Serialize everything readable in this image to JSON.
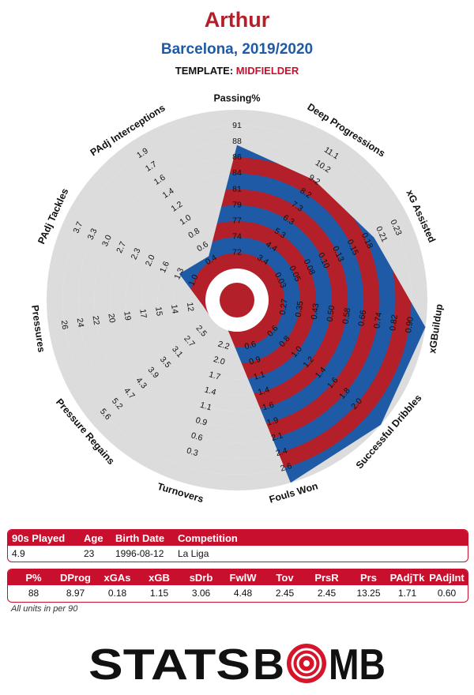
{
  "header": {
    "player": "Arthur",
    "subtitle": "Barcelona, 2019/2020",
    "template_label": "TEMPLATE:",
    "template_value": "MIDFIELDER"
  },
  "colors": {
    "red": "#b3202a",
    "blue": "#1f5aa6",
    "grey_ring": "#dcdcdc",
    "table_red": "#c8102e"
  },
  "chart_data": {
    "type": "radar",
    "title": "Arthur",
    "subtitle": "Barcelona, 2019/2020",
    "axes": [
      {
        "label": "Passing%",
        "ticks": [
          "72",
          "74",
          "77",
          "79",
          "81",
          "84",
          "86",
          "88",
          "91"
        ],
        "value": 88,
        "fraction": 0.778
      },
      {
        "label": "Deep Progressions",
        "ticks": [
          "3.4",
          "4.4",
          "5.3",
          "6.3",
          "7.3",
          "8.2",
          "9.2",
          "10.2",
          "11.1"
        ],
        "value": 8.97,
        "fraction": 0.7
      },
      {
        "label": "xG Assisted",
        "ticks": [
          "0.03",
          "0.05",
          "0.08",
          "0.10",
          "0.13",
          "0.15",
          "0.18",
          "0.21",
          "0.23"
        ],
        "value": 0.18,
        "fraction": 0.75
      },
      {
        "label": "xGBuildup",
        "ticks": [
          "0.27",
          "0.35",
          "0.43",
          "0.50",
          "0.58",
          "0.66",
          "0.74",
          "0.82",
          "0.90"
        ],
        "value": 1.15,
        "fraction": 1.0
      },
      {
        "label": "Successful Dribbles",
        "ticks": [
          "0.6",
          "0.8",
          "1.0",
          "1.2",
          "1.4",
          "1.6",
          "1.8",
          "2.0"
        ],
        "value": 3.06,
        "fraction": 1.0
      },
      {
        "label": "Fouls Won",
        "ticks": [
          "0.6",
          "0.9",
          "1.1",
          "1.4",
          "1.6",
          "1.9",
          "2.1",
          "2.4",
          "2.6"
        ],
        "value": 4.48,
        "fraction": 1.0
      },
      {
        "label": "Turnovers",
        "ticks": [
          "2.2",
          "2.0",
          "1.7",
          "1.4",
          "1.1",
          "0.9",
          "0.6",
          "0.3"
        ],
        "value": 2.45,
        "fraction": 0.0
      },
      {
        "label": "Pressure Regains",
        "ticks": [
          "2.5",
          "2.7",
          "3.1",
          "3.5",
          "3.9",
          "4.3",
          "4.7",
          "5.2",
          "5.6"
        ],
        "value": 2.45,
        "fraction": 0.0
      },
      {
        "label": "Pressures",
        "ticks": [
          "12",
          "14",
          "15",
          "17",
          "19",
          "20",
          "22",
          "24",
          "26"
        ],
        "value": 13.25,
        "fraction": 0.02
      },
      {
        "label": "PAdj Tackles",
        "ticks": [
          "1.0",
          "1.3",
          "1.6",
          "2.0",
          "2.3",
          "2.7",
          "3.0",
          "3.3",
          "3.7"
        ],
        "value": 1.71,
        "fraction": 0.2
      },
      {
        "label": "PAdj Interceptions",
        "ticks": [
          "0.4",
          "0.6",
          "0.8",
          "1.0",
          "1.2",
          "1.4",
          "1.6",
          "1.7",
          "1.9"
        ],
        "value": 0.6,
        "fraction": 0.13
      }
    ]
  },
  "info_table": {
    "headers": [
      "90s Played",
      "Age",
      "Birth Date",
      "Competition"
    ],
    "values": [
      "4.9",
      "23",
      "1996-08-12",
      "La Liga"
    ]
  },
  "stats_table": {
    "headers": [
      "P%",
      "DProg",
      "xGAs",
      "xGB",
      "sDrb",
      "FwlW",
      "Tov",
      "PrsR",
      "Prs",
      "PAdjTk",
      "PAdjInt"
    ],
    "values": [
      "88",
      "8.97",
      "0.18",
      "1.15",
      "3.06",
      "4.48",
      "2.45",
      "2.45",
      "13.25",
      "1.71",
      "0.60"
    ]
  },
  "footnote": "All units in per 90",
  "logo": {
    "part1": "STATS",
    "part2": "B",
    "part3": "MB"
  }
}
